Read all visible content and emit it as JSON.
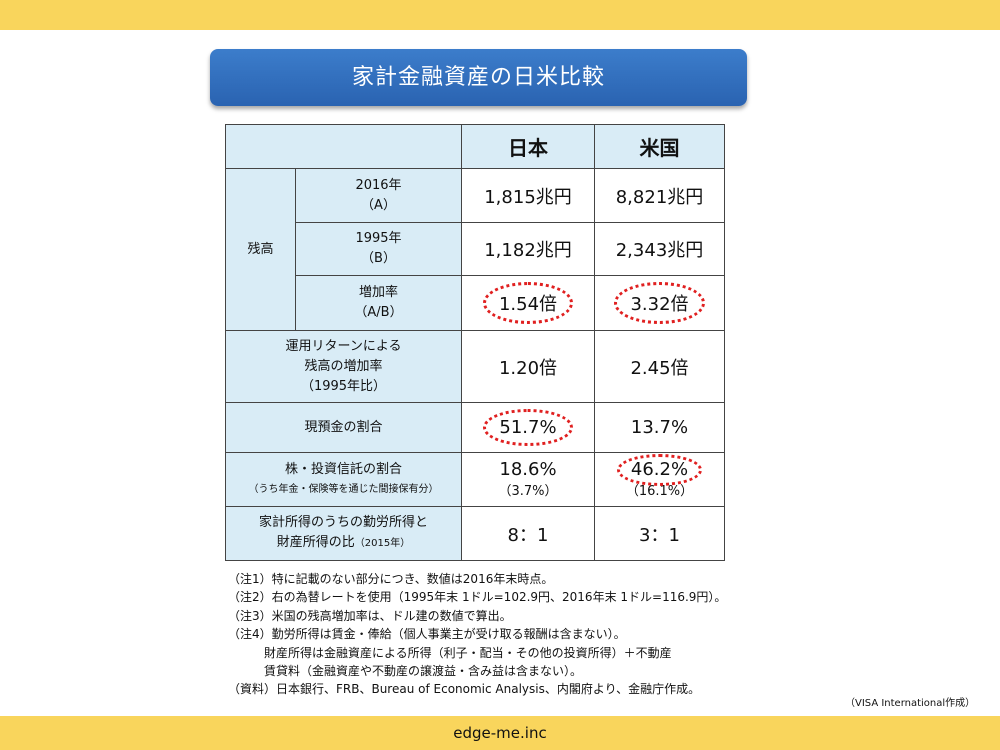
{
  "title": "家計金融資産の日米比較",
  "table": {
    "col_japan": "日本",
    "col_us": "米国",
    "group_balance": "残高",
    "row_2016": {
      "label": "2016年",
      "sub": "（A）",
      "japan": "1,815兆円",
      "us": "8,821兆円"
    },
    "row_1995": {
      "label": "1995年",
      "sub": "（B）",
      "japan": "1,182兆円",
      "us": "2,343兆円"
    },
    "row_growth": {
      "label": "増加率",
      "sub": "（A/B）",
      "japan": "1.54倍",
      "us": "3.32倍"
    },
    "row_return": {
      "line1": "運用リターンによる",
      "line2": "残高の増加率",
      "line3": "（1995年比）",
      "japan": "1.20倍",
      "us": "2.45倍"
    },
    "row_cash": {
      "label": "現預金の割合",
      "japan": "51.7%",
      "us": "13.7%"
    },
    "row_stock": {
      "label": "株・投資信託の割合",
      "sub": "（うち年金・保険等を通じた間接保有分）",
      "japan": "18.6%",
      "japan_sub": "（3.7%）",
      "us": "46.2%",
      "us_sub": "（16.1%）"
    },
    "row_income": {
      "line1": "家計所得のうちの勤労所得と",
      "line2": "財産所得の比",
      "line2_sub": "（2015年）",
      "japan": "8：1",
      "us": "3：1"
    }
  },
  "notes": [
    "（注1）特に記載のない部分につき、数値は2016年末時点。",
    "（注2）右の為替レートを使用（1995年末 1ドル=102.9円、2016年末 1ドル=116.9円）。",
    "（注3）米国の残高増加率は、ドル建の数値で算出。",
    "（注4）勤労所得は賃金・俸給（個人事業主が受け取る報酬は含まない）。",
    "財産所得は金融資産による所得（利子・配当・その他の投資所得）＋不動産",
    "賃貸料（金融資産や不動産の譲渡益・含み益は含まない）。",
    "（資料）日本銀行、FRB、Bureau of Economic Analysis、内閣府より、金融庁作成。"
  ],
  "credit": "（VISA International作成）",
  "footer": "edge-me.inc",
  "colors": {
    "band": "#f9d55c",
    "title_bg": "#2f6dbd",
    "cell_blue": "#d9ecf6",
    "circle": "#e02020"
  }
}
